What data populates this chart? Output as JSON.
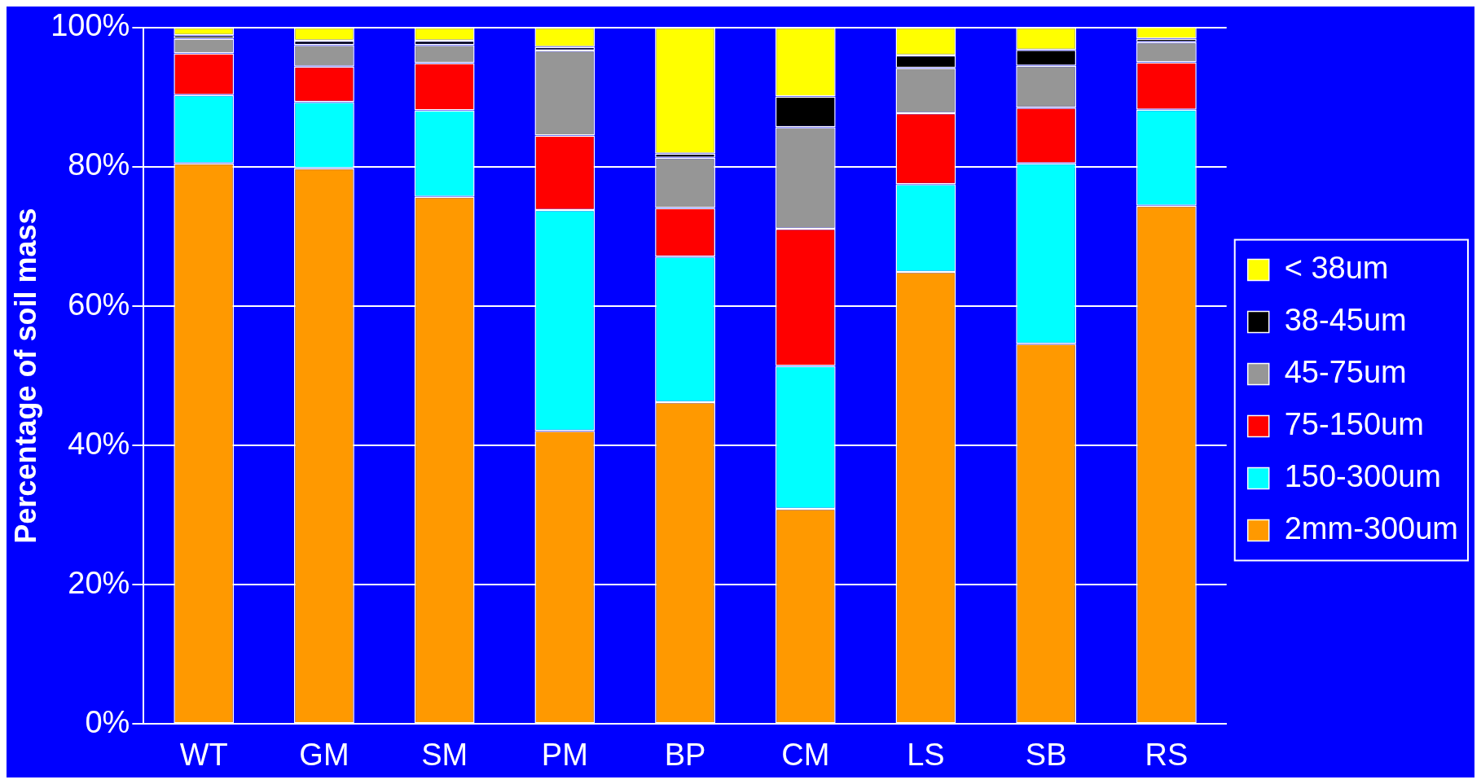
{
  "chart_data": {
    "type": "bar",
    "stacked": true,
    "ylabel": "Percentage of soil mass",
    "categories": [
      "WT",
      "GM",
      "SM",
      "PM",
      "BP",
      "CM",
      "LS",
      "SB",
      "RS"
    ],
    "ylim": [
      0,
      100
    ],
    "yticks": [
      {
        "value": 0,
        "label": "0%"
      },
      {
        "value": 20,
        "label": "20%"
      },
      {
        "value": 40,
        "label": "40%"
      },
      {
        "value": 60,
        "label": "60%"
      },
      {
        "value": 80,
        "label": "80%"
      },
      {
        "value": 100,
        "label": "100%"
      }
    ],
    "grid": "y",
    "legend": "right",
    "series": [
      {
        "name": "2mm-300um",
        "color": "#ff9900",
        "values": [
          80.5,
          79.8,
          75.7,
          42.1,
          46.2,
          30.9,
          64.9,
          54.6,
          74.4
        ]
      },
      {
        "name": "150-300um",
        "color": "#00ffff",
        "values": [
          9.8,
          9.5,
          12.4,
          31.7,
          20.9,
          20.5,
          12.6,
          25.9,
          13.8
        ]
      },
      {
        "name": "75-150um",
        "color": "#ff0000",
        "values": [
          6.0,
          5.1,
          6.8,
          10.7,
          7.0,
          19.7,
          10.2,
          8.0,
          6.8
        ]
      },
      {
        "name": "45-75um",
        "color": "#969696",
        "values": [
          2.1,
          3.1,
          2.6,
          12.2,
          7.2,
          14.6,
          6.5,
          6.0,
          2.9
        ]
      },
      {
        "name": "38-45um",
        "color": "#000000",
        "values": [
          0.5,
          0.6,
          0.6,
          0.5,
          0.6,
          4.4,
          1.8,
          2.3,
          0.5
        ]
      },
      {
        "name": "< 38um",
        "color": "#ffff00",
        "values": [
          1.1,
          1.9,
          1.9,
          2.8,
          18.1,
          9.9,
          4.0,
          3.2,
          1.7
        ]
      }
    ]
  }
}
